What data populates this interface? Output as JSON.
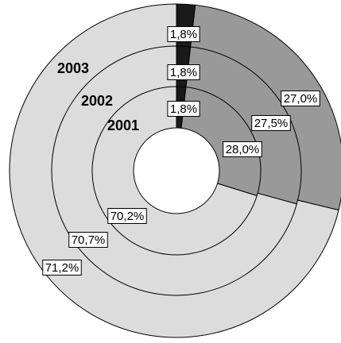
{
  "chart_data": {
    "type": "pie",
    "subtype": "multi-level donut",
    "series": [
      {
        "name": "2003",
        "values": [
          1.8,
          27.0,
          71.2
        ],
        "labels": [
          "1,8%",
          "27,0%",
          "71,2%"
        ]
      },
      {
        "name": "2002",
        "values": [
          1.8,
          27.5,
          70.7
        ],
        "labels": [
          "1,8%",
          "27,5%",
          "70,7%"
        ]
      },
      {
        "name": "2001",
        "values": [
          1.8,
          28.0,
          70.2
        ],
        "labels": [
          "1,8%",
          "28,0%",
          "70,2%"
        ]
      }
    ],
    "slice_colors": [
      "#1a1a1a",
      "#999999",
      "#dcdcdc"
    ],
    "center_color": "#ffffff",
    "title": "",
    "legend": "none"
  }
}
